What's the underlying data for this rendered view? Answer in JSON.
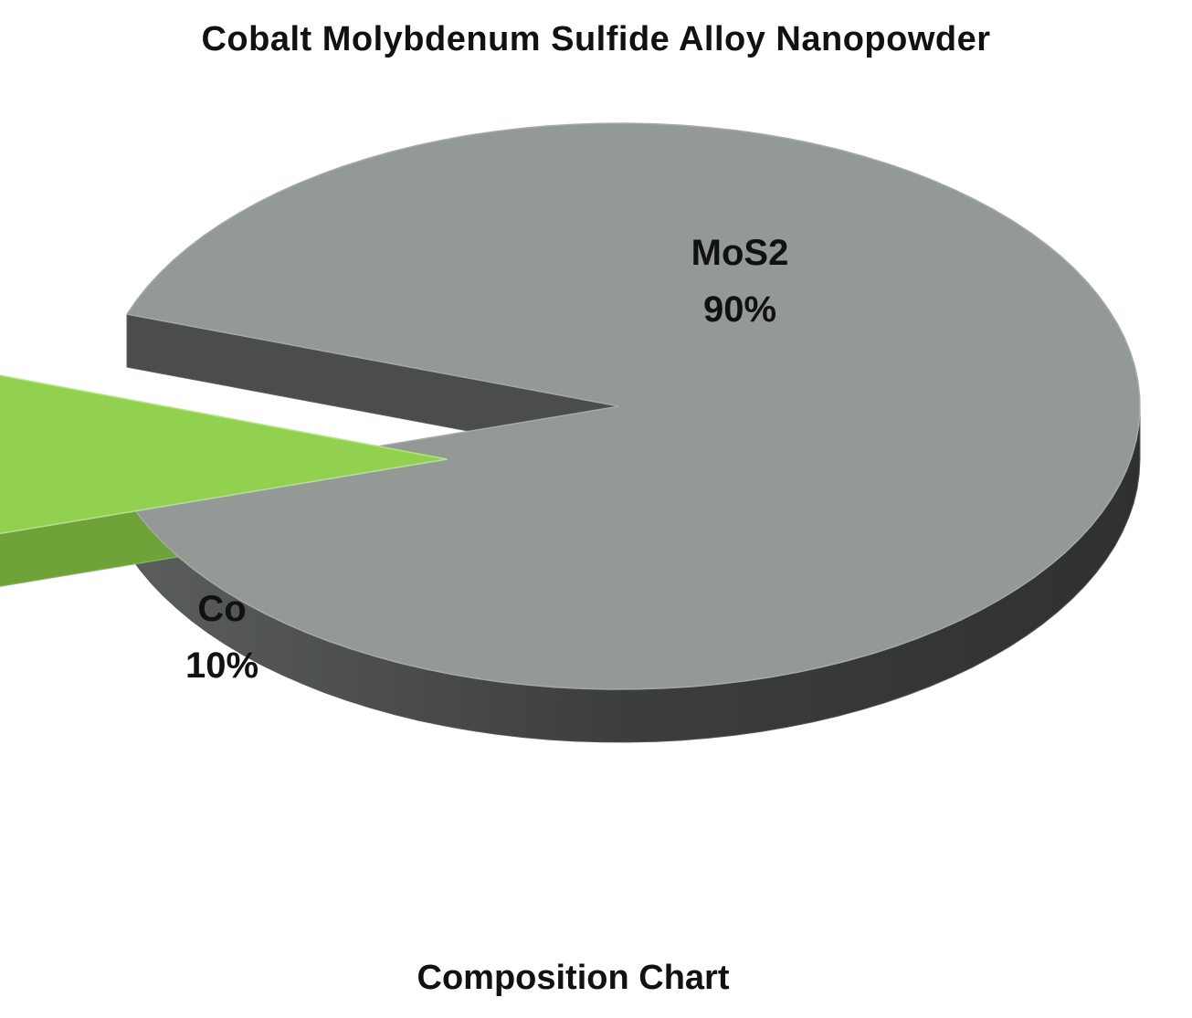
{
  "chart_data": {
    "type": "pie",
    "title": "Cobalt Molybdenum Sulfide Alloy Nanopowder",
    "caption": "Composition Chart",
    "slices": [
      {
        "name": "MoS2",
        "value": 90,
        "label": "90%",
        "color": "#939995",
        "side_color": "#4a4d4c",
        "exploded": false
      },
      {
        "name": "Co",
        "value": 10,
        "label": "10%",
        "color": "#92d050",
        "side_color": "#6e9f38",
        "exploded": true
      }
    ],
    "style": "3d-exploded"
  }
}
